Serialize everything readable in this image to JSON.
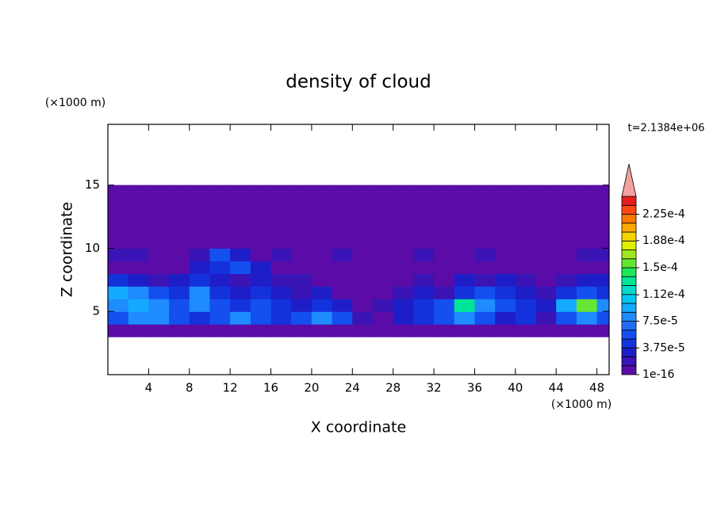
{
  "chart_data": {
    "type": "contour",
    "title": "density of cloud",
    "x_label": "X coordinate",
    "y_label": "Z coordinate",
    "x_unit": "(×1000 m)",
    "y_unit": "(×1000 m)",
    "annotation": "t=2.1384e+06",
    "xlim": [
      0,
      49.2
    ],
    "ylim": [
      0,
      19.8
    ],
    "xticks": [
      4,
      8,
      12,
      16,
      20,
      24,
      28,
      32,
      36,
      40,
      44,
      48
    ],
    "yticks": [
      5,
      10,
      15
    ],
    "x": [
      1,
      3,
      5,
      7,
      9,
      11,
      13,
      15,
      17,
      19,
      21,
      23,
      25,
      27,
      29,
      31,
      33,
      35,
      37,
      39,
      41,
      43,
      45,
      47,
      49
    ],
    "y": [
      3.5,
      4.5,
      5.5,
      6.5,
      7.5,
      8.5,
      9.5,
      10.5,
      11.5,
      12.5,
      13.5,
      14.5
    ],
    "z": [
      [
        5e-06,
        5e-06,
        5e-06,
        5e-06,
        5e-06,
        5e-06,
        5e-06,
        5e-06,
        5e-06,
        5e-06,
        5e-06,
        5e-06,
        5e-06,
        5e-06,
        5e-06,
        5e-06,
        5e-06,
        5e-06,
        5e-06,
        5e-06,
        5e-06,
        5e-06,
        5e-06,
        5e-06,
        5e-06
      ],
      [
        6e-05,
        8e-05,
        8e-05,
        6e-05,
        4e-05,
        6e-05,
        8e-05,
        6e-05,
        4e-05,
        6e-05,
        8e-05,
        6e-05,
        2e-05,
        5e-06,
        3e-05,
        4e-05,
        6e-05,
        8e-05,
        6e-05,
        3e-05,
        4e-05,
        2e-05,
        6e-05,
        8e-05,
        6e-05
      ],
      [
        8e-05,
        0.0001,
        8e-05,
        6e-05,
        8e-05,
        6e-05,
        4e-05,
        6e-05,
        4e-05,
        3e-05,
        4e-05,
        3e-05,
        5e-06,
        2e-05,
        3e-05,
        4e-05,
        6e-05,
        0.00013,
        8e-05,
        6e-05,
        4e-05,
        3e-05,
        0.0001,
        0.00016,
        8e-05
      ],
      [
        0.0001,
        8e-05,
        6e-05,
        4e-05,
        8e-05,
        4e-05,
        3e-05,
        4e-05,
        3e-05,
        2e-05,
        3e-05,
        5e-06,
        5e-06,
        5e-06,
        2e-05,
        3e-05,
        2e-05,
        4e-05,
        6e-05,
        4e-05,
        3e-05,
        2e-05,
        4e-05,
        6e-05,
        4e-05
      ],
      [
        4e-05,
        3e-05,
        2e-05,
        3e-05,
        4e-05,
        3e-05,
        2e-05,
        3e-05,
        2e-05,
        2e-05,
        5e-06,
        5e-06,
        5e-06,
        5e-06,
        5e-06,
        2e-05,
        5e-06,
        3e-05,
        2e-05,
        3e-05,
        2e-05,
        5e-06,
        2e-05,
        3e-05,
        3e-05
      ],
      [
        5e-06,
        5e-06,
        5e-06,
        5e-06,
        3e-05,
        4e-05,
        6e-05,
        3e-05,
        5e-06,
        5e-06,
        5e-06,
        5e-06,
        5e-06,
        5e-06,
        5e-06,
        5e-06,
        5e-06,
        5e-06,
        5e-06,
        5e-06,
        5e-06,
        5e-06,
        5e-06,
        5e-06,
        5e-06
      ],
      [
        2e-05,
        2e-05,
        5e-06,
        5e-06,
        2e-05,
        6e-05,
        3e-05,
        5e-06,
        2e-05,
        5e-06,
        5e-06,
        2e-05,
        5e-06,
        5e-06,
        5e-06,
        2e-05,
        5e-06,
        5e-06,
        2e-05,
        5e-06,
        5e-06,
        5e-06,
        5e-06,
        2e-05,
        2e-05
      ],
      [
        5e-06,
        5e-06,
        5e-06,
        5e-06,
        5e-06,
        5e-06,
        5e-06,
        5e-06,
        5e-06,
        5e-06,
        5e-06,
        5e-06,
        5e-06,
        5e-06,
        5e-06,
        5e-06,
        5e-06,
        5e-06,
        5e-06,
        5e-06,
        5e-06,
        5e-06,
        5e-06,
        5e-06,
        5e-06
      ],
      [
        5e-06,
        5e-06,
        5e-06,
        5e-06,
        5e-06,
        5e-06,
        5e-06,
        5e-06,
        5e-06,
        5e-06,
        5e-06,
        5e-06,
        5e-06,
        5e-06,
        5e-06,
        5e-06,
        5e-06,
        5e-06,
        5e-06,
        5e-06,
        5e-06,
        5e-06,
        5e-06,
        5e-06,
        5e-06
      ],
      [
        5e-06,
        5e-06,
        5e-06,
        5e-06,
        5e-06,
        5e-06,
        5e-06,
        5e-06,
        5e-06,
        5e-06,
        5e-06,
        5e-06,
        5e-06,
        5e-06,
        5e-06,
        5e-06,
        5e-06,
        5e-06,
        5e-06,
        5e-06,
        5e-06,
        5e-06,
        5e-06,
        5e-06,
        5e-06
      ],
      [
        5e-06,
        5e-06,
        5e-06,
        5e-06,
        5e-06,
        5e-06,
        5e-06,
        5e-06,
        5e-06,
        5e-06,
        5e-06,
        5e-06,
        5e-06,
        5e-06,
        5e-06,
        5e-06,
        5e-06,
        5e-06,
        5e-06,
        5e-06,
        5e-06,
        5e-06,
        5e-06,
        5e-06,
        5e-06
      ],
      [
        5e-06,
        5e-06,
        5e-06,
        5e-06,
        5e-06,
        5e-06,
        5e-06,
        5e-06,
        5e-06,
        5e-06,
        5e-06,
        5e-06,
        5e-06,
        5e-06,
        5e-06,
        5e-06,
        5e-06,
        5e-06,
        5e-06,
        5e-06,
        5e-06,
        5e-06,
        5e-06,
        5e-06,
        5e-06
      ]
    ],
    "clim": [
      1e-16,
      0.00025
    ],
    "colorbar_ticks": [
      {
        "value": 1e-16,
        "label": "1e-16"
      },
      {
        "value": 3.75e-05,
        "label": "3.75e-5"
      },
      {
        "value": 7.5e-05,
        "label": "7.5e-5"
      },
      {
        "value": 0.000112,
        "label": "1.12e-4"
      },
      {
        "value": 0.00015,
        "label": "1.5e-4"
      },
      {
        "value": 0.000188,
        "label": "1.88e-4"
      },
      {
        "value": 0.000225,
        "label": "2.25e-4"
      }
    ],
    "colors": [
      "#5b0ca8",
      "#3a14b4",
      "#1e1ec8",
      "#1432dc",
      "#1450f0",
      "#1e6ef5",
      "#1e8cff",
      "#14aaff",
      "#00c8f0",
      "#00dcc8",
      "#00e696",
      "#1ee65a",
      "#64e632",
      "#a0e61e",
      "#dcf000",
      "#f5d200",
      "#ffaa00",
      "#ff7800",
      "#ff4614",
      "#e61e1e"
    ],
    "extend_color": "#f5a0a0"
  }
}
